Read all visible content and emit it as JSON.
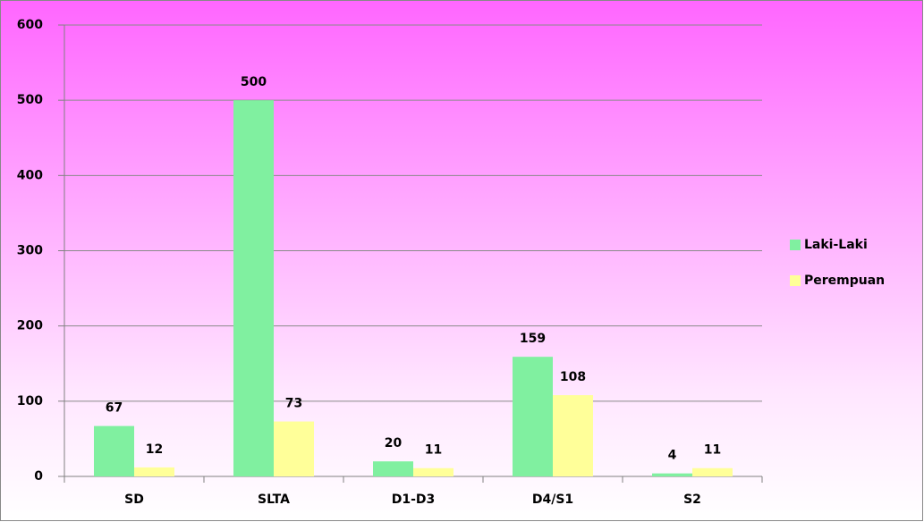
{
  "chart_data": {
    "type": "bar",
    "categories": [
      "SD",
      "SLTA",
      "D1-D3",
      "D4/S1",
      "S2"
    ],
    "series": [
      {
        "name": "Laki-Laki",
        "color": "#80f0a0",
        "values": [
          67,
          500,
          20,
          159,
          4
        ]
      },
      {
        "name": "Perempuan",
        "color": "#ffff99",
        "values": [
          12,
          73,
          11,
          108,
          11
        ]
      }
    ],
    "ylim": [
      0,
      600
    ],
    "yticks": [
      0,
      100,
      200,
      300,
      400,
      500,
      600
    ],
    "grid": true,
    "legend": "right"
  }
}
